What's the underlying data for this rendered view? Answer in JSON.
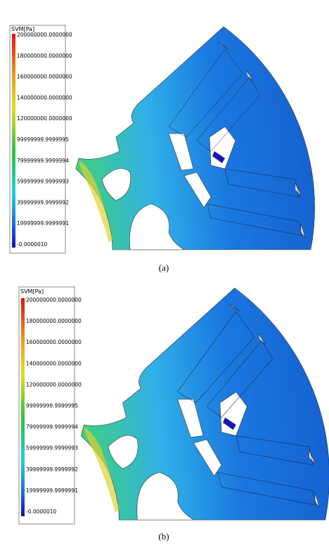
{
  "panels": [
    {
      "legend": {
        "title": "SVM[Pa]",
        "labels": [
          "200000000.0000000",
          "180000000.0000000",
          "160000000.0000000",
          "140000000.0000000",
          "120000000.0000000",
          "99999999.9999995",
          "79999999.9999994",
          "59999999.9999993",
          "39999999.9999992",
          "19999999.9999991",
          "-0.0000010"
        ]
      },
      "caption": "(a)"
    },
    {
      "legend": {
        "title": "SVM[Pa]",
        "labels": [
          "200000000.0000000",
          "180000000.0000000",
          "160000000.0000000",
          "140000000.0000000",
          "120000000.0000000",
          "99999999.9999995",
          "79999999.9999994",
          "59999999.9999993",
          "39999999.9999992",
          "19999999.9999991",
          "-0.0000010"
        ]
      },
      "caption": "(b)"
    }
  ]
}
